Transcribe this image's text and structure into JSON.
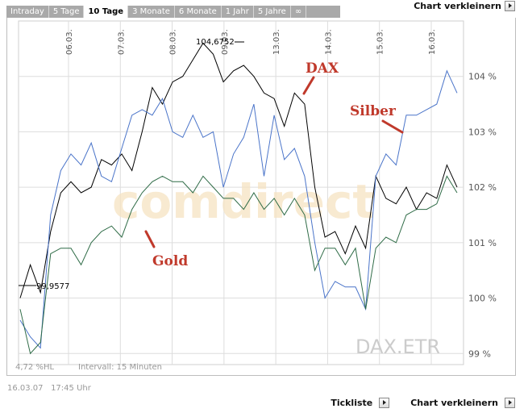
{
  "tabs": [
    {
      "label": "Intraday",
      "active": false
    },
    {
      "label": "5 Tage",
      "active": false
    },
    {
      "label": "10 Tage",
      "active": true
    },
    {
      "label": "3 Monate",
      "active": false
    },
    {
      "label": "6 Monate",
      "active": false
    },
    {
      "label": "1 Jahr",
      "active": false
    },
    {
      "label": "5 Jahre",
      "active": false
    },
    {
      "label": "∞",
      "active": false
    }
  ],
  "top_link": "Chart verkleinern",
  "footer": {
    "range_info": "4,72 %HL",
    "interval": "Intervall: 15 Minuten",
    "timestamp": "16.03.07   17:45 Uhr"
  },
  "bottom_links": {
    "tickliste": "Tickliste",
    "chart_smaller": "Chart verkleinern"
  },
  "watermark": "comdirect",
  "symbol_label": "DAX.ETR",
  "annotations": {
    "dax": "DAX",
    "silber": "Silber",
    "gold": "Gold",
    "max_value": "104,6752",
    "min_value": "99,9577"
  },
  "colors": {
    "dax": "#000000",
    "silber": "#4a74c9",
    "gold": "#2e6b46",
    "annotation": "#c0392b",
    "grid": "#dddddd",
    "tabbar": "#a9a9a9"
  },
  "chart_data": {
    "type": "line",
    "x_ticks": [
      "06.03.",
      "07.03.",
      "08.03.",
      "09.03.",
      "13.03.",
      "14.03.",
      "15.03.",
      "16.03."
    ],
    "y_ticks": [
      "99 %",
      "100 %",
      "101 %",
      "102 %",
      "103 %",
      "104 %"
    ],
    "ylim": [
      98.8,
      105
    ],
    "grid": true,
    "series": [
      {
        "name": "DAX",
        "values": [
          100.0,
          100.6,
          100.1,
          101.2,
          101.9,
          102.1,
          101.9,
          102.0,
          102.5,
          102.4,
          102.6,
          102.3,
          103.0,
          103.8,
          103.5,
          103.9,
          104.0,
          104.3,
          104.6,
          104.4,
          103.9,
          104.1,
          104.2,
          104.0,
          103.7,
          103.6,
          103.1,
          103.7,
          103.5,
          102.0,
          101.1,
          101.2,
          100.8,
          101.3,
          100.9,
          102.2,
          101.8,
          101.7,
          102.0,
          101.6,
          101.9,
          101.8,
          102.4,
          102.0
        ]
      },
      {
        "name": "Silber",
        "values": [
          99.6,
          99.3,
          99.1,
          101.5,
          102.3,
          102.6,
          102.4,
          102.8,
          102.2,
          102.1,
          102.7,
          103.3,
          103.4,
          103.3,
          103.6,
          103.0,
          102.9,
          103.3,
          102.9,
          103.0,
          102.0,
          102.6,
          102.9,
          103.5,
          102.2,
          103.3,
          102.5,
          102.7,
          102.2,
          101.0,
          100.0,
          100.3,
          100.2,
          100.2,
          99.8,
          102.2,
          102.6,
          102.4,
          103.3,
          103.3,
          103.4,
          103.5,
          104.1,
          103.7
        ]
      },
      {
        "name": "Gold",
        "values": [
          99.8,
          99.0,
          99.2,
          100.8,
          100.9,
          100.9,
          100.6,
          101.0,
          101.2,
          101.3,
          101.1,
          101.6,
          101.9,
          102.1,
          102.2,
          102.1,
          102.1,
          101.9,
          102.2,
          102.0,
          101.8,
          101.8,
          101.6,
          101.9,
          101.6,
          101.8,
          101.5,
          101.8,
          101.5,
          100.5,
          100.9,
          100.9,
          100.6,
          100.9,
          99.8,
          100.9,
          101.1,
          101.0,
          101.5,
          101.6,
          101.6,
          101.7,
          102.2,
          101.9
        ]
      }
    ]
  }
}
